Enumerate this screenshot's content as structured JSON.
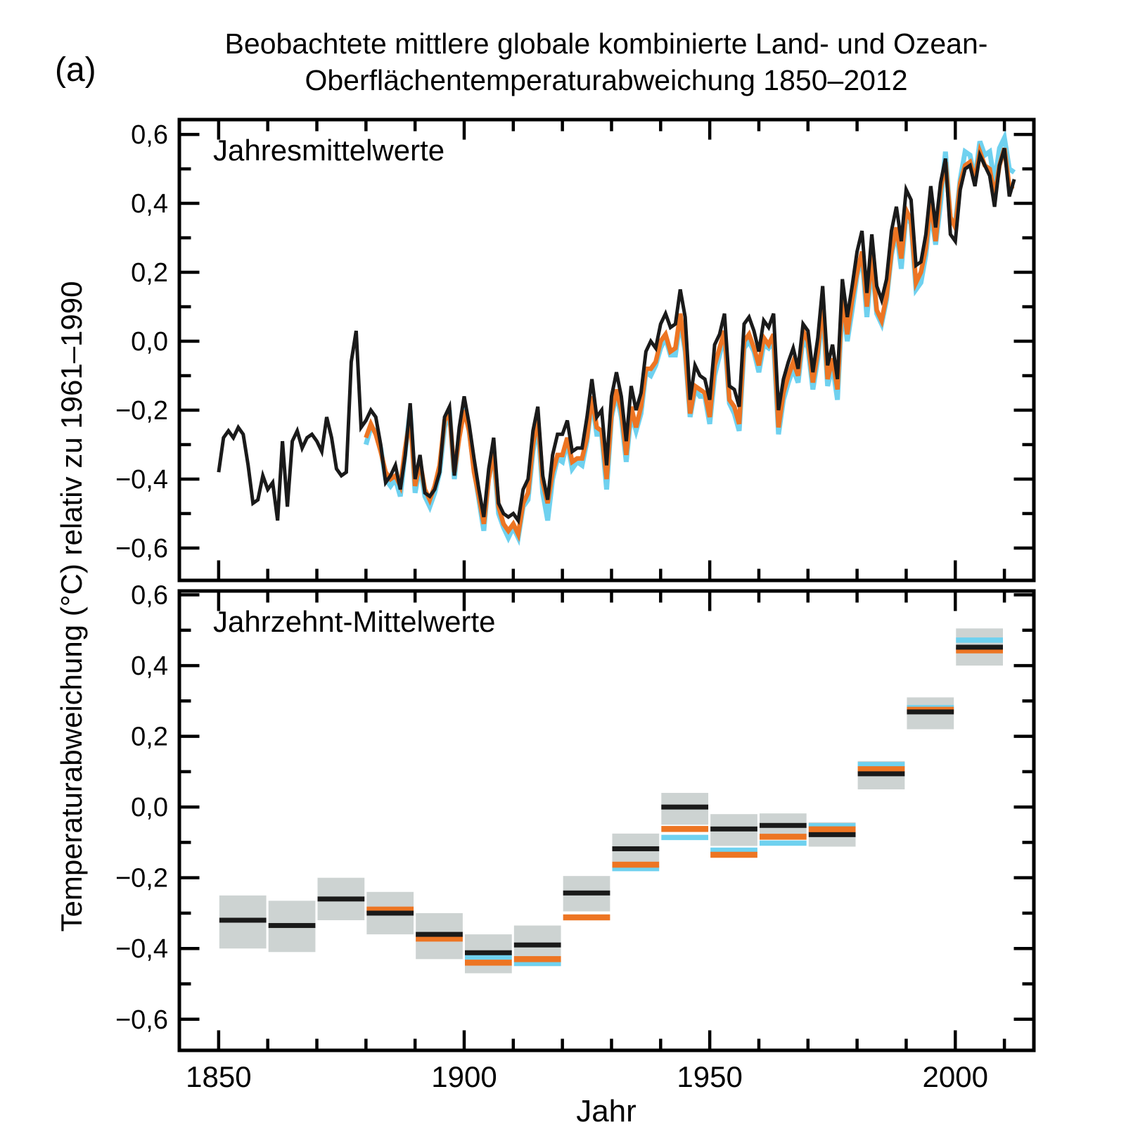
{
  "labels": {
    "figure": "(a)",
    "panel1": "Jahresmittelwerte",
    "panel2": "Jahrzehnt-Mittelwerte",
    "xlabel": "Jahr",
    "ylabel": "Temperaturabweichung (°C) relativ zu 1961–1990"
  },
  "title": {
    "line1": "Beobachtete mittlere globale kombinierte Land- und Ozean-",
    "line2": "Oberflächentemperaturabweichung 1850–2012"
  },
  "colors": {
    "black_series": "#1a1a1a",
    "orange_series": "#ed7523",
    "cyan_series": "#6fd1ef",
    "uncertainty_box": "#cdd3d2",
    "frame": "#000000"
  },
  "chart_data": [
    {
      "type": "line",
      "panel_label": "Jahresmittelwerte",
      "x_range": [
        1842,
        2016
      ],
      "y_range": [
        -0.694,
        0.643
      ],
      "x_major_ticks": [
        1850,
        1900,
        1950,
        2000
      ],
      "x_minor_ticks": [
        1860,
        1870,
        1880,
        1890,
        1910,
        1920,
        1930,
        1940,
        1960,
        1970,
        1980,
        1990,
        2010
      ],
      "y_major_ticks": [
        0.6,
        0.4,
        0.2,
        0.0,
        -0.2,
        -0.4,
        -0.6
      ],
      "y_tick_labels": [
        "0,6",
        "0,4",
        "0,2",
        "0,0",
        "−0,2",
        "−0,4",
        "−0,6"
      ],
      "y_minor_ticks": [
        0.5,
        0.3,
        0.1,
        -0.1,
        -0.3,
        -0.5
      ],
      "grid": false,
      "series": [
        {
          "name": "black-annual",
          "color_key": "black_series",
          "start_year": 1850,
          "values": [
            -0.38,
            -0.28,
            -0.26,
            -0.28,
            -0.25,
            -0.27,
            -0.36,
            -0.47,
            -0.46,
            -0.39,
            -0.43,
            -0.41,
            -0.52,
            -0.29,
            -0.48,
            -0.29,
            -0.26,
            -0.31,
            -0.28,
            -0.27,
            -0.29,
            -0.32,
            -0.22,
            -0.28,
            -0.37,
            -0.39,
            -0.38,
            -0.06,
            0.03,
            -0.25,
            -0.23,
            -0.2,
            -0.22,
            -0.3,
            -0.41,
            -0.39,
            -0.36,
            -0.43,
            -0.33,
            -0.18,
            -0.4,
            -0.33,
            -0.44,
            -0.45,
            -0.43,
            -0.38,
            -0.22,
            -0.19,
            -0.39,
            -0.25,
            -0.16,
            -0.24,
            -0.34,
            -0.43,
            -0.51,
            -0.37,
            -0.28,
            -0.47,
            -0.5,
            -0.51,
            -0.5,
            -0.52,
            -0.43,
            -0.4,
            -0.26,
            -0.19,
            -0.39,
            -0.46,
            -0.33,
            -0.27,
            -0.27,
            -0.23,
            -0.32,
            -0.31,
            -0.31,
            -0.22,
            -0.11,
            -0.22,
            -0.2,
            -0.36,
            -0.16,
            -0.09,
            -0.16,
            -0.29,
            -0.13,
            -0.2,
            -0.15,
            -0.03,
            0.0,
            -0.02,
            0.05,
            0.08,
            0.04,
            0.05,
            0.15,
            0.07,
            -0.17,
            -0.07,
            -0.1,
            -0.11,
            -0.17,
            -0.01,
            0.02,
            0.08,
            -0.13,
            -0.14,
            -0.19,
            0.05,
            0.07,
            0.03,
            -0.03,
            0.06,
            0.04,
            0.08,
            -0.2,
            -0.11,
            -0.06,
            -0.02,
            -0.08,
            0.05,
            0.03,
            -0.09,
            0.01,
            0.16,
            -0.07,
            -0.01,
            -0.11,
            0.18,
            0.07,
            0.16,
            0.26,
            0.32,
            0.14,
            0.31,
            0.16,
            0.12,
            0.18,
            0.32,
            0.39,
            0.29,
            0.44,
            0.41,
            0.22,
            0.23,
            0.31,
            0.45,
            0.33,
            0.46,
            0.53,
            0.31,
            0.29,
            0.44,
            0.5,
            0.51,
            0.45,
            0.54,
            0.51,
            0.48,
            0.39,
            0.51,
            0.56,
            0.42,
            0.47
          ]
        },
        {
          "name": "orange-annual",
          "color_key": "orange_series",
          "start_year": 1880,
          "values": [
            -0.28,
            -0.24,
            -0.27,
            -0.32,
            -0.38,
            -0.4,
            -0.39,
            -0.42,
            -0.31,
            -0.22,
            -0.42,
            -0.35,
            -0.43,
            -0.46,
            -0.42,
            -0.36,
            -0.23,
            -0.21,
            -0.38,
            -0.28,
            -0.2,
            -0.26,
            -0.38,
            -0.45,
            -0.53,
            -0.4,
            -0.32,
            -0.48,
            -0.53,
            -0.55,
            -0.53,
            -0.56,
            -0.47,
            -0.44,
            -0.3,
            -0.22,
            -0.41,
            -0.47,
            -0.38,
            -0.33,
            -0.33,
            -0.28,
            -0.35,
            -0.34,
            -0.34,
            -0.28,
            -0.16,
            -0.25,
            -0.26,
            -0.4,
            -0.21,
            -0.14,
            -0.2,
            -0.33,
            -0.19,
            -0.25,
            -0.19,
            -0.08,
            -0.08,
            -0.06,
            0.0,
            0.02,
            -0.03,
            -0.02,
            0.08,
            -0.02,
            -0.21,
            -0.13,
            -0.14,
            -0.15,
            -0.22,
            -0.07,
            -0.02,
            0.03,
            -0.17,
            -0.19,
            -0.24,
            0.0,
            0.02,
            -0.02,
            -0.07,
            0.01,
            -0.01,
            0.02,
            -0.25,
            -0.15,
            -0.1,
            -0.06,
            -0.1,
            0.03,
            0.0,
            -0.12,
            -0.03,
            0.12,
            -0.11,
            -0.05,
            -0.14,
            0.13,
            0.02,
            0.12,
            0.2,
            0.26,
            0.1,
            0.25,
            0.09,
            0.06,
            0.13,
            0.26,
            0.33,
            0.24,
            0.38,
            0.35,
            0.17,
            0.2,
            0.27,
            0.41,
            0.29,
            0.44,
            0.52,
            0.36,
            0.33,
            0.46,
            0.51,
            0.52,
            0.47,
            0.55,
            0.51,
            0.5,
            0.42,
            0.51,
            0.56,
            0.45,
            0.45
          ]
        },
        {
          "name": "cyan-annual",
          "color_key": "cyan_series",
          "start_year": 1880,
          "values": [
            -0.3,
            -0.25,
            -0.26,
            -0.31,
            -0.4,
            -0.42,
            -0.4,
            -0.45,
            -0.32,
            -0.2,
            -0.44,
            -0.36,
            -0.45,
            -0.48,
            -0.44,
            -0.38,
            -0.25,
            -0.2,
            -0.4,
            -0.27,
            -0.19,
            -0.26,
            -0.37,
            -0.46,
            -0.55,
            -0.39,
            -0.33,
            -0.5,
            -0.54,
            -0.57,
            -0.54,
            -0.57,
            -0.48,
            -0.46,
            -0.32,
            -0.24,
            -0.44,
            -0.52,
            -0.4,
            -0.34,
            -0.35,
            -0.29,
            -0.37,
            -0.35,
            -0.36,
            -0.29,
            -0.17,
            -0.27,
            -0.27,
            -0.43,
            -0.22,
            -0.15,
            -0.22,
            -0.35,
            -0.21,
            -0.26,
            -0.21,
            -0.09,
            -0.1,
            -0.07,
            -0.02,
            0.01,
            -0.04,
            -0.04,
            0.06,
            -0.03,
            -0.22,
            -0.14,
            -0.16,
            -0.16,
            -0.24,
            -0.1,
            -0.04,
            0.02,
            -0.18,
            -0.21,
            -0.26,
            -0.02,
            0.0,
            -0.03,
            -0.09,
            -0.01,
            -0.02,
            0.0,
            -0.27,
            -0.17,
            -0.12,
            -0.08,
            -0.12,
            0.01,
            -0.02,
            -0.14,
            -0.05,
            0.1,
            -0.13,
            -0.07,
            -0.17,
            0.11,
            0.0,
            0.09,
            0.19,
            0.25,
            0.07,
            0.23,
            0.08,
            0.05,
            0.12,
            0.25,
            0.32,
            0.21,
            0.37,
            0.34,
            0.15,
            0.17,
            0.25,
            0.38,
            0.28,
            0.4,
            0.55,
            0.35,
            0.34,
            0.47,
            0.55,
            0.54,
            0.47,
            0.58,
            0.54,
            0.55,
            0.46,
            0.56,
            0.59,
            0.5,
            0.49
          ]
        }
      ]
    },
    {
      "type": "bar",
      "panel_label": "Jahrzehnt-Mittelwerte",
      "x_range": [
        1842,
        2016
      ],
      "y_range": [
        -0.688,
        0.611
      ],
      "x_major_ticks": [
        1850,
        1900,
        1950,
        2000
      ],
      "x_tick_labels": [
        "1850",
        "1900",
        "1950",
        "2000"
      ],
      "x_minor_ticks": [
        1860,
        1870,
        1880,
        1890,
        1910,
        1920,
        1930,
        1940,
        1960,
        1970,
        1980,
        1990,
        2010
      ],
      "y_major_ticks": [
        0.6,
        0.4,
        0.2,
        0.0,
        -0.2,
        -0.4,
        -0.6
      ],
      "y_tick_labels": [
        "0,6",
        "0,4",
        "0,2",
        "0,0",
        "−0,2",
        "−0,4",
        "−0,6"
      ],
      "y_minor_ticks": [
        0.5,
        0.3,
        0.1,
        -0.1,
        -0.3,
        -0.5
      ],
      "grid": false,
      "decades": [
        {
          "start": 1850,
          "box_top": -0.25,
          "box_bottom": -0.4,
          "black": -0.32,
          "orange": null,
          "cyan": null
        },
        {
          "start": 1860,
          "box_top": -0.265,
          "box_bottom": -0.41,
          "black": -0.335,
          "orange": null,
          "cyan": null
        },
        {
          "start": 1870,
          "box_top": -0.2,
          "box_bottom": -0.32,
          "black": -0.26,
          "orange": null,
          "cyan": null
        },
        {
          "start": 1880,
          "box_top": -0.24,
          "box_bottom": -0.36,
          "black": -0.3,
          "orange": -0.29,
          "cyan": null
        },
        {
          "start": 1890,
          "box_top": -0.3,
          "box_bottom": -0.43,
          "black": -0.36,
          "orange": -0.372,
          "cyan": null
        },
        {
          "start": 1900,
          "box_top": -0.36,
          "box_bottom": -0.47,
          "black": -0.412,
          "orange": -0.44,
          "cyan": -0.424
        },
        {
          "start": 1910,
          "box_top": -0.335,
          "box_bottom": -0.45,
          "black": -0.39,
          "orange": -0.43,
          "cyan": -0.442
        },
        {
          "start": 1920,
          "box_top": -0.195,
          "box_bottom": -0.295,
          "black": -0.243,
          "orange": -0.312,
          "cyan": null
        },
        {
          "start": 1930,
          "box_top": -0.075,
          "box_bottom": -0.155,
          "black": -0.118,
          "orange": -0.163,
          "cyan": -0.174
        },
        {
          "start": 1940,
          "box_top": 0.04,
          "box_bottom": -0.05,
          "black": 0.0,
          "orange": -0.062,
          "cyan": -0.086
        },
        {
          "start": 1950,
          "box_top": -0.02,
          "box_bottom": -0.11,
          "black": -0.062,
          "orange": -0.135,
          "cyan": -0.122
        },
        {
          "start": 1960,
          "box_top": -0.018,
          "box_bottom": -0.085,
          "black": -0.052,
          "orange": -0.084,
          "cyan": -0.102
        },
        {
          "start": 1970,
          "box_top": -0.043,
          "box_bottom": -0.112,
          "black": -0.078,
          "orange": -0.063,
          "cyan": -0.053
        },
        {
          "start": 1980,
          "box_top": 0.13,
          "box_bottom": 0.05,
          "black": 0.094,
          "orange": 0.107,
          "cyan": 0.12
        },
        {
          "start": 1990,
          "box_top": 0.31,
          "box_bottom": 0.22,
          "black": 0.269,
          "orange": 0.275,
          "cyan": 0.281
        },
        {
          "start": 2000,
          "box_top": 0.505,
          "box_bottom": 0.4,
          "black": 0.452,
          "orange": 0.443,
          "cyan": 0.472
        }
      ]
    }
  ]
}
